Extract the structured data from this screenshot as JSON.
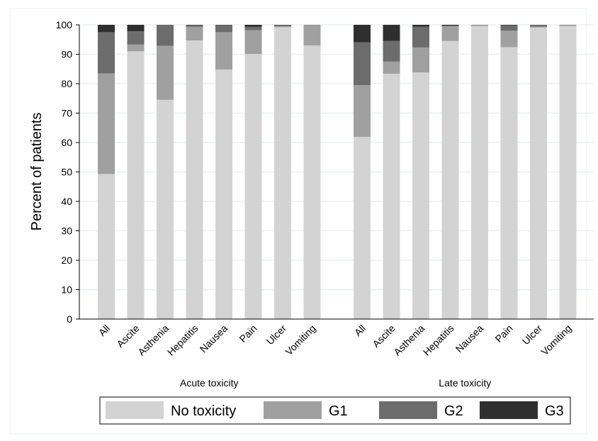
{
  "chart_data": {
    "type": "bar",
    "stacked": true,
    "ylabel": "Percent of patients",
    "ylim": [
      0,
      100
    ],
    "yticks": [
      0,
      10,
      20,
      30,
      40,
      50,
      60,
      70,
      80,
      90,
      100
    ],
    "grid": true,
    "legend_position": "bottom",
    "colors": {
      "No toxicity": "#d3d3d3",
      "G1": "#a0a0a0",
      "G2": "#6c6c6c",
      "G3": "#2f2f2f"
    },
    "panels": [
      {
        "label": "Acute toxicity",
        "categories": [
          "All",
          "Ascite",
          "Asthenia",
          "Hepatitis",
          "Nausea",
          "Pain",
          "Ulcer",
          "Vomiting"
        ],
        "series": [
          {
            "name": "No toxicity",
            "values": [
              49.3,
              91.0,
              74.5,
              94.7,
              84.8,
              90.1,
              99.2,
              93.0
            ]
          },
          {
            "name": "G1",
            "values": [
              34.2,
              2.3,
              18.4,
              4.6,
              12.7,
              8.1,
              0.3,
              6.9
            ]
          },
          {
            "name": "G2",
            "values": [
              14.0,
              4.5,
              7.1,
              0.6,
              2.4,
              1.1,
              0.5,
              0.1
            ]
          },
          {
            "name": "G3",
            "values": [
              2.5,
              2.2,
              0.0,
              0.1,
              0.1,
              0.7,
              0.0,
              0.0
            ]
          }
        ]
      },
      {
        "label": "Late toxicity",
        "categories": [
          "All",
          "Ascite",
          "Asthenia",
          "Hepatitis",
          "Nausea",
          "Pain",
          "Ulcer",
          "Vomiting"
        ],
        "series": [
          {
            "name": "No toxicity",
            "values": [
              61.9,
              83.4,
              83.8,
              94.5,
              99.6,
              92.4,
              99.1,
              99.6
            ]
          },
          {
            "name": "G1",
            "values": [
              17.6,
              4.1,
              8.5,
              5.0,
              0.3,
              5.6,
              0.3,
              0.3
            ]
          },
          {
            "name": "G2",
            "values": [
              14.6,
              7.0,
              7.1,
              0.2,
              0.1,
              1.8,
              0.6,
              0.1
            ]
          },
          {
            "name": "G3",
            "values": [
              5.9,
              5.5,
              0.6,
              0.3,
              0.0,
              0.2,
              0.0,
              0.0
            ]
          }
        ]
      }
    ],
    "legend": [
      "No toxicity",
      "G1",
      "G2",
      "G3"
    ]
  }
}
